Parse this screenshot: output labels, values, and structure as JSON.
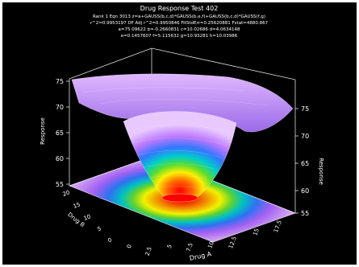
{
  "chart_data": {
    "type": "surface",
    "title": "Drug Response Test 402",
    "equation_lines": [
      "Rank 1  Eqn 3013  z=a+GAUSS(b,c,d)*GAUSS(b,e,f)+GAUSS(b,c,d)*GAUSS(f,g)",
      "r^2=0.9953197  DF Adj r^2=0.9950846  FitStdErr=0.25620881  Fstat=4880.867",
      "a=75.09622  b=-0.2660831  c=10.02686  d=4.0634148",
      "e=0.1457607  f=5.115632  g=10.93281  h=10.03986"
    ],
    "xlabel": "Drug A",
    "ylabel": "Drug B",
    "zlabel_left": "Response",
    "zlabel_right": "Response",
    "x_ticks": [
      "0",
      "2.5",
      "5",
      "7.5",
      "10",
      "12.5",
      "15",
      "17.5"
    ],
    "y_ticks": [
      "0",
      "5",
      "10",
      "15",
      "20"
    ],
    "z_ticks_left": [
      "55",
      "60",
      "65",
      "70",
      "75"
    ],
    "z_ticks_right": [
      "55",
      "60",
      "65",
      "70",
      "75"
    ],
    "x_range": [
      0,
      20
    ],
    "y_range": [
      0,
      20
    ],
    "z_range": [
      55,
      76
    ],
    "colormap": [
      "#ff0000",
      "#ff9900",
      "#ffff00",
      "#33cc33",
      "#00cccc",
      "#3366ff",
      "#cc66ff",
      "#ffffff"
    ],
    "background": "#000000"
  }
}
